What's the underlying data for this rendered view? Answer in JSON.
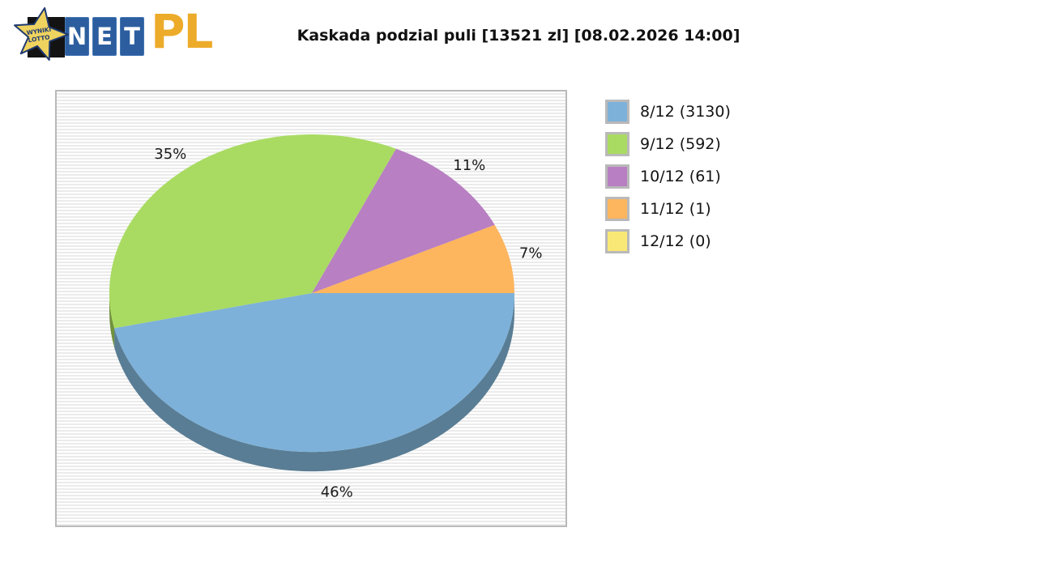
{
  "logo": {
    "star_text_line1": "WYNIKI",
    "star_text_line2": "LOTTO",
    "tiles": [
      "N",
      "E",
      "T"
    ],
    "suffix": "PL",
    "colors": {
      "tile_blue": "#2c5e9f",
      "gold": "#edab2a",
      "star_fill": "#efd35f",
      "star_outline": "#1f3a70",
      "star_text": "#1f3a70"
    }
  },
  "header": {
    "title": "Kaskada podzial puli [13521 zl] [08.02.2026 14:00]"
  },
  "chart_data": {
    "type": "pie",
    "title": "Kaskada podzial puli [13521 zl] [08.02.2026 14:00]",
    "game": "Kaskada",
    "pool": "13521 zl",
    "timestamp": "08.02.2026 14:00",
    "legend_position": "right",
    "style": "3d-pie",
    "slices": [
      {
        "tier": "8/12",
        "winners": 3130,
        "percent": 46,
        "percent_label": "46%",
        "legend_label": "8/12 (3130)",
        "color": "#7db1d9",
        "side_color": "#597d94"
      },
      {
        "tier": "9/12",
        "winners": 592,
        "percent": 35,
        "percent_label": "35%",
        "legend_label": "9/12 (592)",
        "color": "#a9db62",
        "side_color": "#71923d"
      },
      {
        "tier": "10/12",
        "winners": 61,
        "percent": 11,
        "percent_label": "11%",
        "legend_label": "10/12 (61)",
        "color": "#b87fc2",
        "side_color": "#84598c"
      },
      {
        "tier": "11/12",
        "winners": 1,
        "percent": 7,
        "percent_label": "7%",
        "legend_label": "11/12 (1)",
        "color": "#fdb55e",
        "side_color": "#b5813f"
      },
      {
        "tier": "12/12",
        "winners": 0,
        "percent": 0,
        "percent_label": "",
        "legend_label": "12/12 (0)",
        "color": "#f9e876",
        "side_color": "#b2a452"
      }
    ]
  }
}
